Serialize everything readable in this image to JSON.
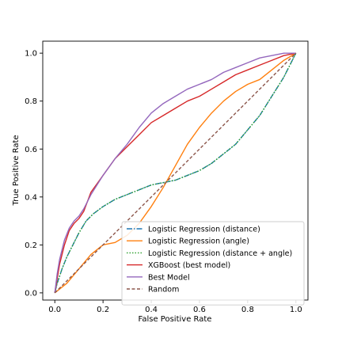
{
  "chart_data": {
    "type": "line",
    "title": "",
    "xlabel": "False Positive Rate",
    "ylabel": "True Positive Rate",
    "xlim": [
      -0.05,
      1.05
    ],
    "ylim": [
      -0.03,
      1.05
    ],
    "xticks": [
      0.0,
      0.2,
      0.4,
      0.6,
      0.8,
      1.0
    ],
    "yticks": [
      0.0,
      0.2,
      0.4,
      0.6,
      0.8,
      1.0
    ],
    "xtick_labels": [
      "0.0",
      "0.2",
      "0.4",
      "0.6",
      "0.8",
      "1.0"
    ],
    "ytick_labels": [
      "0.0",
      "0.2",
      "0.4",
      "0.6",
      "0.8",
      "1.0"
    ],
    "grid": false,
    "legend_position": "lower-right",
    "series": [
      {
        "name": "Logistic Regression (distance)",
        "color": "#1f77b4",
        "dash": "dashdot",
        "points": [
          [
            0,
            0
          ],
          [
            0.01,
            0.04
          ],
          [
            0.03,
            0.1
          ],
          [
            0.05,
            0.15
          ],
          [
            0.08,
            0.21
          ],
          [
            0.1,
            0.25
          ],
          [
            0.13,
            0.3
          ],
          [
            0.16,
            0.33
          ],
          [
            0.2,
            0.36
          ],
          [
            0.25,
            0.39
          ],
          [
            0.3,
            0.41
          ],
          [
            0.35,
            0.43
          ],
          [
            0.4,
            0.45
          ],
          [
            0.45,
            0.46
          ],
          [
            0.5,
            0.47
          ],
          [
            0.55,
            0.49
          ],
          [
            0.6,
            0.51
          ],
          [
            0.65,
            0.54
          ],
          [
            0.7,
            0.58
          ],
          [
            0.75,
            0.62
          ],
          [
            0.8,
            0.68
          ],
          [
            0.85,
            0.74
          ],
          [
            0.9,
            0.82
          ],
          [
            0.95,
            0.9
          ],
          [
            0.98,
            0.96
          ],
          [
            1.0,
            1.0
          ]
        ]
      },
      {
        "name": "Logistic Regression (angle)",
        "color": "#ff7f0e",
        "dash": "solid",
        "points": [
          [
            0,
            0
          ],
          [
            0.05,
            0.04
          ],
          [
            0.1,
            0.1
          ],
          [
            0.15,
            0.16
          ],
          [
            0.2,
            0.2
          ],
          [
            0.25,
            0.21
          ],
          [
            0.3,
            0.24
          ],
          [
            0.35,
            0.29
          ],
          [
            0.4,
            0.36
          ],
          [
            0.45,
            0.44
          ],
          [
            0.5,
            0.53
          ],
          [
            0.55,
            0.62
          ],
          [
            0.6,
            0.69
          ],
          [
            0.65,
            0.75
          ],
          [
            0.7,
            0.8
          ],
          [
            0.75,
            0.84
          ],
          [
            0.8,
            0.87
          ],
          [
            0.85,
            0.89
          ],
          [
            0.9,
            0.93
          ],
          [
            0.95,
            0.97
          ],
          [
            1.0,
            1.0
          ]
        ]
      },
      {
        "name": "Logistic Regression (distance + angle)",
        "color": "#2ca02c",
        "dash": "dotted",
        "points": [
          [
            0,
            0
          ],
          [
            0.01,
            0.04
          ],
          [
            0.03,
            0.1
          ],
          [
            0.05,
            0.15
          ],
          [
            0.08,
            0.21
          ],
          [
            0.1,
            0.25
          ],
          [
            0.13,
            0.3
          ],
          [
            0.16,
            0.33
          ],
          [
            0.2,
            0.36
          ],
          [
            0.25,
            0.39
          ],
          [
            0.3,
            0.41
          ],
          [
            0.35,
            0.43
          ],
          [
            0.4,
            0.45
          ],
          [
            0.45,
            0.46
          ],
          [
            0.5,
            0.47
          ],
          [
            0.55,
            0.49
          ],
          [
            0.6,
            0.51
          ],
          [
            0.65,
            0.54
          ],
          [
            0.7,
            0.58
          ],
          [
            0.75,
            0.62
          ],
          [
            0.8,
            0.68
          ],
          [
            0.85,
            0.74
          ],
          [
            0.9,
            0.82
          ],
          [
            0.95,
            0.9
          ],
          [
            0.98,
            0.96
          ],
          [
            1.0,
            1.0
          ]
        ]
      },
      {
        "name": "XGBoost (best model)",
        "color": "#d62728",
        "dash": "solid",
        "points": [
          [
            0,
            0
          ],
          [
            0.01,
            0.06
          ],
          [
            0.02,
            0.12
          ],
          [
            0.04,
            0.2
          ],
          [
            0.06,
            0.26
          ],
          [
            0.08,
            0.29
          ],
          [
            0.1,
            0.31
          ],
          [
            0.12,
            0.34
          ],
          [
            0.15,
            0.42
          ],
          [
            0.2,
            0.49
          ],
          [
            0.25,
            0.56
          ],
          [
            0.3,
            0.61
          ],
          [
            0.35,
            0.66
          ],
          [
            0.4,
            0.71
          ],
          [
            0.45,
            0.74
          ],
          [
            0.5,
            0.77
          ],
          [
            0.55,
            0.8
          ],
          [
            0.6,
            0.82
          ],
          [
            0.65,
            0.85
          ],
          [
            0.7,
            0.88
          ],
          [
            0.75,
            0.91
          ],
          [
            0.8,
            0.93
          ],
          [
            0.85,
            0.95
          ],
          [
            0.9,
            0.97
          ],
          [
            0.95,
            0.99
          ],
          [
            1.0,
            1.0
          ]
        ]
      },
      {
        "name": "Best Model",
        "color": "#9467bd",
        "dash": "solid",
        "points": [
          [
            0,
            0
          ],
          [
            0.01,
            0.08
          ],
          [
            0.02,
            0.14
          ],
          [
            0.04,
            0.22
          ],
          [
            0.06,
            0.27
          ],
          [
            0.08,
            0.3
          ],
          [
            0.1,
            0.32
          ],
          [
            0.12,
            0.35
          ],
          [
            0.15,
            0.41
          ],
          [
            0.2,
            0.49
          ],
          [
            0.25,
            0.56
          ],
          [
            0.3,
            0.62
          ],
          [
            0.35,
            0.69
          ],
          [
            0.4,
            0.75
          ],
          [
            0.45,
            0.79
          ],
          [
            0.5,
            0.82
          ],
          [
            0.55,
            0.85
          ],
          [
            0.6,
            0.87
          ],
          [
            0.65,
            0.89
          ],
          [
            0.7,
            0.92
          ],
          [
            0.75,
            0.94
          ],
          [
            0.8,
            0.96
          ],
          [
            0.85,
            0.98
          ],
          [
            0.9,
            0.99
          ],
          [
            0.95,
            1.0
          ],
          [
            1.0,
            1.0
          ]
        ]
      },
      {
        "name": "Random",
        "color": "#8c564b",
        "dash": "dashed",
        "points": [
          [
            0,
            0
          ],
          [
            1,
            1
          ]
        ]
      }
    ]
  }
}
